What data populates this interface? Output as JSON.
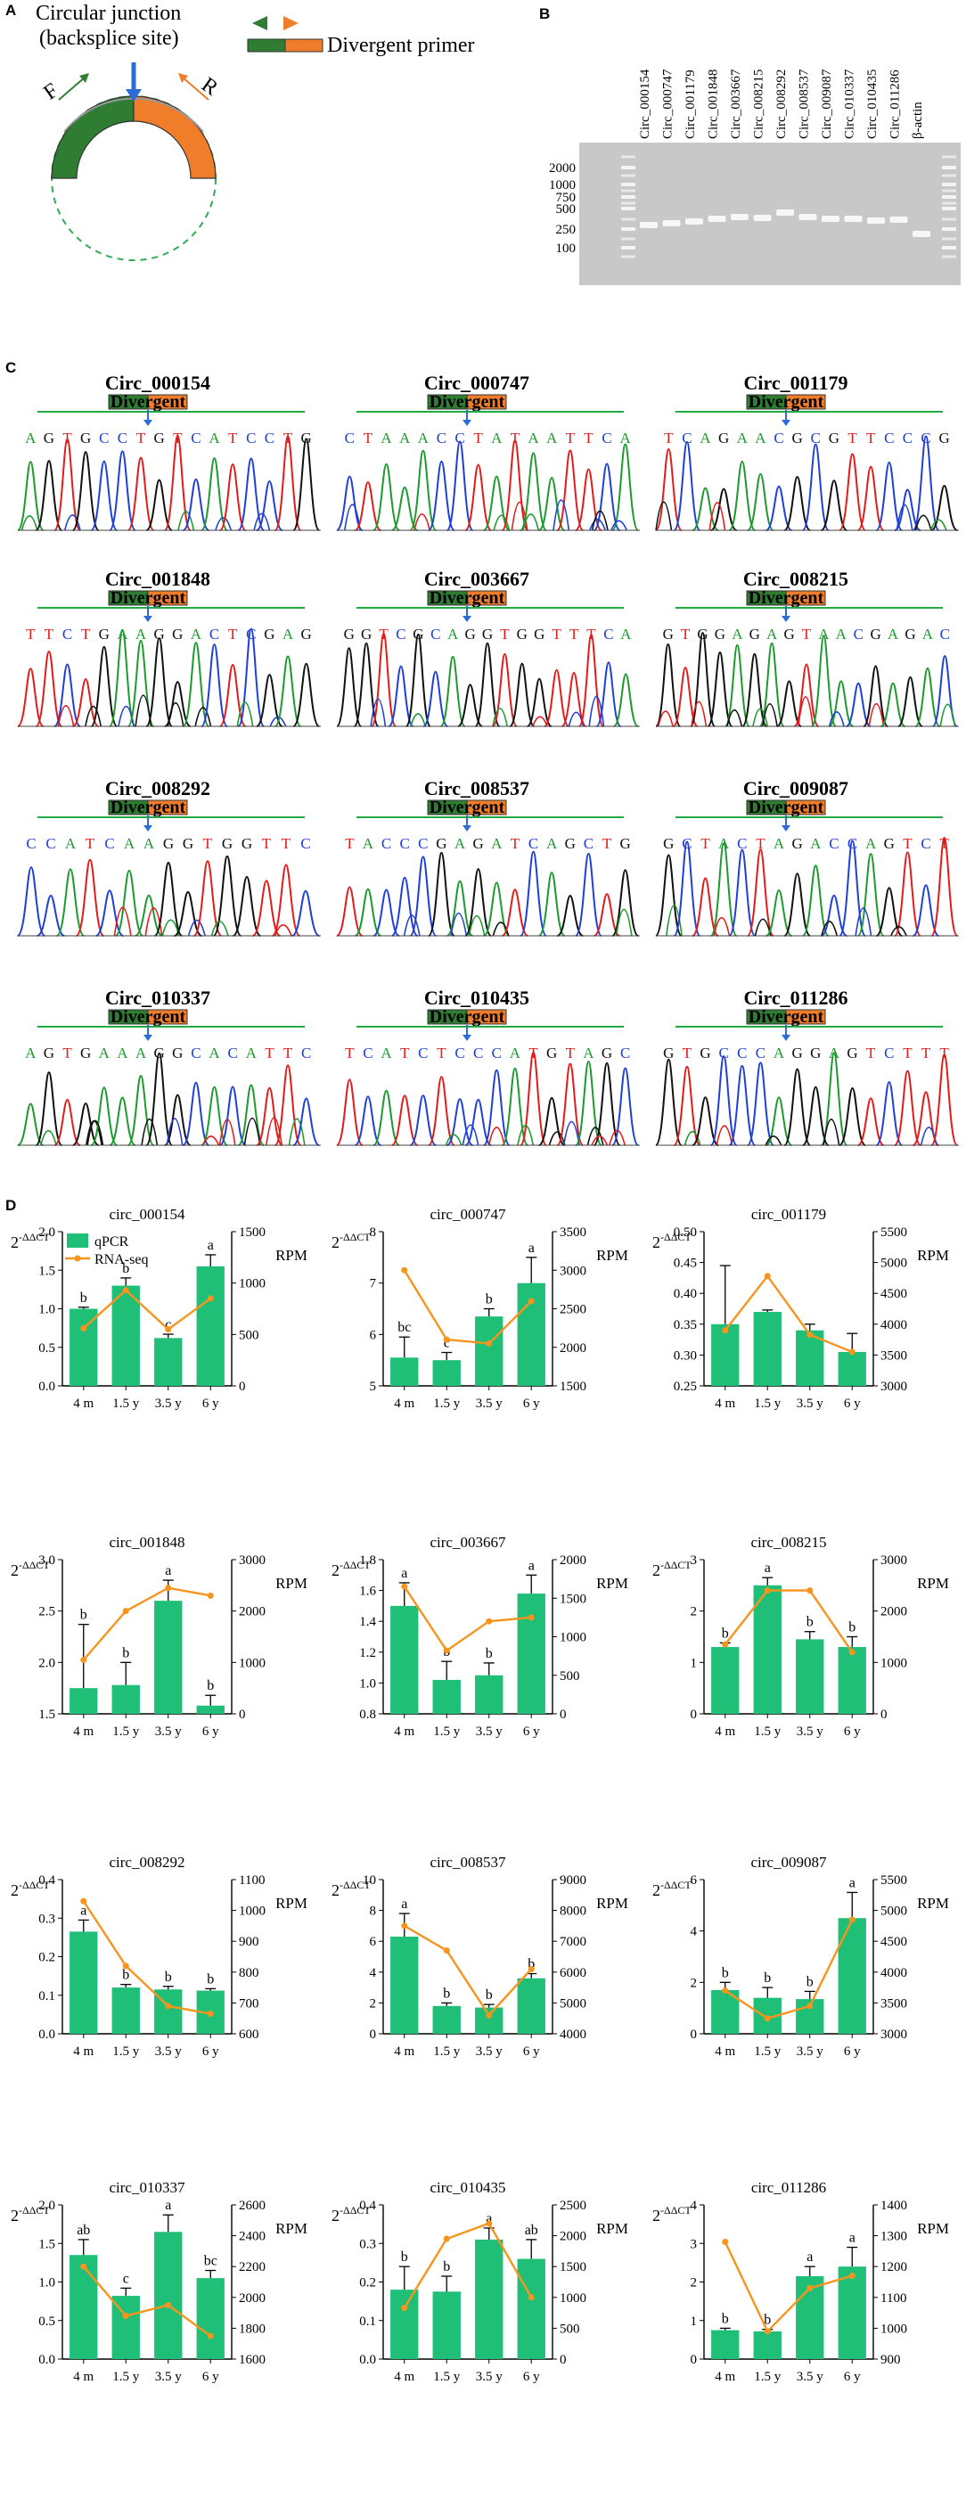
{
  "colors": {
    "qpcr": "#1fbf78",
    "rnaseq": "#f7941d",
    "primer_green": "#2e7d32",
    "primer_orange": "#f07d2a",
    "blue": "#2b6cd6"
  },
  "panelA": {
    "letter": "A",
    "title_line1": "Circular junction",
    "title_line2": "(backsplice site)",
    "legend_label": "Divergent primer",
    "label_F": "F",
    "label_R": "R"
  },
  "panelB": {
    "letter": "B",
    "lane_labels": [
      "Circ_000154",
      "Circ_000747",
      "Circ_001179",
      "Circ_001848",
      "Circ_003667",
      "Circ_008215",
      "Circ_008292",
      "Circ_008537",
      "Circ_009087",
      "Circ_010337",
      "Circ_010435",
      "Circ_011286",
      "β-actin"
    ],
    "ladder": [
      "2000",
      "1000",
      "750",
      "500",
      "250",
      "100"
    ]
  },
  "panelC": {
    "letter": "C",
    "primer_word": "Divergent",
    "traces": [
      {
        "name": "Circ_000154",
        "seq": "AGTGCCTGTCATCCTG"
      },
      {
        "name": "Circ_000747",
        "seq": "CTAAACCTATAATTCA"
      },
      {
        "name": "Circ_001179",
        "seq": "TCAGAACGCGTTCCCG"
      },
      {
        "name": "Circ_001848",
        "seq": "TTCTGAAGGACTCGAG"
      },
      {
        "name": "Circ_003667",
        "seq": "GGTCGCAGGTGGTTTCA"
      },
      {
        "name": "Circ_008215",
        "seq": "GTGGAGAGTAACGAGAC"
      },
      {
        "name": "Circ_008292",
        "seq": "CCATCAAGGTGGTTC"
      },
      {
        "name": "Circ_008537",
        "seq": "TACCCGAGATCAGCTG"
      },
      {
        "name": "Circ_009087",
        "seq": "GCTACTAGACCAGTCT"
      },
      {
        "name": "Circ_010337",
        "seq": "AGTGAAAGGCACATTC"
      },
      {
        "name": "Circ_010435",
        "seq": "TCATCTCCCATGTAGC"
      },
      {
        "name": "Circ_011286",
        "seq": "GTGCCCAGGAGTCTTT"
      }
    ]
  },
  "panelD": {
    "letter": "D",
    "left_axis_label": "2",
    "left_axis_sup": "-ΔΔCT",
    "right_axis_label": "RPM",
    "legend_qpcr": "qPCR",
    "legend_rna": "RNA-seq",
    "categories": [
      "4 m",
      "1.5 y",
      "3.5 y",
      "6 y"
    ]
  },
  "chart_data": [
    {
      "type": "bar+line",
      "title": "circ_000154",
      "categories": [
        "4 m",
        "1.5 y",
        "3.5 y",
        "6 y"
      ],
      "left_ylim": [
        0,
        2.0
      ],
      "left_ticks": [
        "0.0",
        "0.5",
        "1.0",
        "1.5",
        "2.0"
      ],
      "right_ylim": [
        0,
        1500
      ],
      "right_ticks": [
        "0",
        "500",
        "1000",
        "1500"
      ],
      "series": [
        {
          "name": "qPCR",
          "values": [
            1.0,
            1.3,
            0.62,
            1.55
          ],
          "errors": [
            0.02,
            0.1,
            0.05,
            0.15
          ]
        },
        {
          "name": "RNA-seq",
          "values": [
            560,
            930,
            550,
            850
          ]
        }
      ],
      "letters": [
        "b",
        "b",
        "c",
        "a"
      ]
    },
    {
      "type": "bar+line",
      "title": "circ_000747",
      "categories": [
        "4 m",
        "1.5 y",
        "3.5 y",
        "6 y"
      ],
      "left_ylim": [
        5,
        8
      ],
      "left_ticks": [
        "5",
        "6",
        "7",
        "8"
      ],
      "right_ylim": [
        1500,
        3500
      ],
      "right_ticks": [
        "1500",
        "2000",
        "2500",
        "3000",
        "3500"
      ],
      "series": [
        {
          "name": "qPCR",
          "values": [
            5.55,
            5.5,
            6.35,
            7.0
          ],
          "errors": [
            0.4,
            0.15,
            0.15,
            0.5
          ]
        },
        {
          "name": "RNA-seq",
          "values": [
            3000,
            2100,
            2050,
            2600
          ]
        }
      ],
      "letters": [
        "bc",
        "c",
        "b",
        "a"
      ]
    },
    {
      "type": "bar+line",
      "title": "circ_001179",
      "categories": [
        "4 m",
        "1.5 y",
        "3.5 y",
        "6 y"
      ],
      "left_ylim": [
        0.25,
        0.5
      ],
      "left_ticks": [
        "0.25",
        "0.30",
        "0.35",
        "0.40",
        "0.45",
        "0.50"
      ],
      "right_ylim": [
        3000,
        5500
      ],
      "right_ticks": [
        "3000",
        "3500",
        "4000",
        "4500",
        "5000",
        "5500"
      ],
      "series": [
        {
          "name": "qPCR",
          "values": [
            0.35,
            0.37,
            0.34,
            0.305
          ],
          "errors": [
            0.095,
            0.003,
            0.01,
            0.03
          ]
        },
        {
          "name": "RNA-seq",
          "values": [
            3900,
            4780,
            3830,
            3550
          ]
        }
      ],
      "letters": [
        "",
        "",
        "",
        ""
      ]
    },
    {
      "type": "bar+line",
      "title": "circ_001848",
      "categories": [
        "4 m",
        "1.5 y",
        "3.5 y",
        "6 y"
      ],
      "left_ylim": [
        1.5,
        3.0
      ],
      "left_ticks": [
        "1.5",
        "2.0",
        "2.5",
        "3.0"
      ],
      "right_ylim": [
        0,
        3000
      ],
      "right_ticks": [
        "0",
        "1000",
        "2000",
        "3000"
      ],
      "series": [
        {
          "name": "qPCR",
          "values": [
            1.75,
            1.78,
            2.6,
            1.58
          ],
          "errors": [
            0.62,
            0.22,
            0.2,
            0.1
          ]
        },
        {
          "name": "RNA-seq",
          "values": [
            1050,
            2000,
            2450,
            2300
          ]
        }
      ],
      "letters": [
        "b",
        "b",
        "a",
        "b"
      ]
    },
    {
      "type": "bar+line",
      "title": "circ_003667",
      "categories": [
        "4 m",
        "1.5 y",
        "3.5 y",
        "6 y"
      ],
      "left_ylim": [
        0.8,
        1.8
      ],
      "left_ticks": [
        "0.8",
        "1.0",
        "1.2",
        "1.4",
        "1.6",
        "1.8"
      ],
      "right_ylim": [
        0,
        2000
      ],
      "right_ticks": [
        "0",
        "500",
        "1000",
        "1500",
        "2000"
      ],
      "series": [
        {
          "name": "qPCR",
          "values": [
            1.5,
            1.02,
            1.05,
            1.58
          ],
          "errors": [
            0.15,
            0.12,
            0.08,
            0.12
          ]
        },
        {
          "name": "RNA-seq",
          "values": [
            1650,
            820,
            1200,
            1250
          ]
        }
      ],
      "letters": [
        "a",
        "b",
        "b",
        "a"
      ]
    },
    {
      "type": "bar+line",
      "title": "circ_008215",
      "categories": [
        "4 m",
        "1.5 y",
        "3.5 y",
        "6 y"
      ],
      "left_ylim": [
        0,
        3
      ],
      "left_ticks": [
        "0",
        "1",
        "2",
        "3"
      ],
      "right_ylim": [
        0,
        3000
      ],
      "right_ticks": [
        "0",
        "1000",
        "2000",
        "3000"
      ],
      "series": [
        {
          "name": "qPCR",
          "values": [
            1.3,
            2.5,
            1.45,
            1.3
          ],
          "errors": [
            0.08,
            0.15,
            0.15,
            0.2
          ]
        },
        {
          "name": "RNA-seq",
          "values": [
            1350,
            2400,
            2400,
            1200
          ]
        }
      ],
      "letters": [
        "b",
        "a",
        "b",
        "b"
      ]
    },
    {
      "type": "bar+line",
      "title": "circ_008292",
      "categories": [
        "4 m",
        "1.5 y",
        "3.5 y",
        "6 y"
      ],
      "left_ylim": [
        0,
        0.4
      ],
      "left_ticks": [
        "0.0",
        "0.1",
        "0.2",
        "0.3",
        "0.4"
      ],
      "right_ylim": [
        600,
        1100
      ],
      "right_ticks": [
        "600",
        "700",
        "800",
        "900",
        "1000",
        "1100"
      ],
      "series": [
        {
          "name": "qPCR",
          "values": [
            0.265,
            0.12,
            0.115,
            0.112
          ],
          "errors": [
            0.03,
            0.008,
            0.008,
            0.005
          ]
        },
        {
          "name": "RNA-seq",
          "values": [
            1030,
            820,
            690,
            665
          ]
        }
      ],
      "letters": [
        "a",
        "b",
        "b",
        "b"
      ]
    },
    {
      "type": "bar+line",
      "title": "circ_008537",
      "categories": [
        "4 m",
        "1.5 y",
        "3.5 y",
        "6 y"
      ],
      "left_ylim": [
        0,
        10
      ],
      "left_ticks": [
        "0",
        "2",
        "4",
        "6",
        "8",
        "10"
      ],
      "right_ylim": [
        4000,
        9000
      ],
      "right_ticks": [
        "4000",
        "5000",
        "6000",
        "7000",
        "8000",
        "9000"
      ],
      "series": [
        {
          "name": "qPCR",
          "values": [
            6.3,
            1.8,
            1.7,
            3.6
          ],
          "errors": [
            1.5,
            0.2,
            0.2,
            0.3
          ]
        },
        {
          "name": "RNA-seq",
          "values": [
            7500,
            6700,
            4600,
            6100
          ]
        }
      ],
      "letters": [
        "a",
        "b",
        "b",
        "b"
      ]
    },
    {
      "type": "bar+line",
      "title": "circ_009087",
      "categories": [
        "4 m",
        "1.5 y",
        "3.5 y",
        "6 y"
      ],
      "left_ylim": [
        0,
        6
      ],
      "left_ticks": [
        "0",
        "2",
        "4",
        "6"
      ],
      "right_ylim": [
        3000,
        5500
      ],
      "right_ticks": [
        "3000",
        "3500",
        "4000",
        "4500",
        "5000",
        "5500"
      ],
      "series": [
        {
          "name": "qPCR",
          "values": [
            1.7,
            1.4,
            1.35,
            4.5
          ],
          "errors": [
            0.3,
            0.4,
            0.3,
            1.0
          ]
        },
        {
          "name": "RNA-seq",
          "values": [
            3700,
            3250,
            3450,
            4850
          ]
        }
      ],
      "letters": [
        "b",
        "b",
        "b",
        "a"
      ]
    },
    {
      "type": "bar+line",
      "title": "circ_010337",
      "categories": [
        "4 m",
        "1.5 y",
        "3.5 y",
        "6 y"
      ],
      "left_ylim": [
        0,
        2.0
      ],
      "left_ticks": [
        "0.0",
        "0.5",
        "1.0",
        "1.5",
        "2.0"
      ],
      "right_ylim": [
        1600,
        2600
      ],
      "right_ticks": [
        "1600",
        "1800",
        "2000",
        "2200",
        "2400",
        "2600"
      ],
      "series": [
        {
          "name": "qPCR",
          "values": [
            1.35,
            0.82,
            1.65,
            1.05
          ],
          "errors": [
            0.2,
            0.1,
            0.22,
            0.1
          ]
        },
        {
          "name": "RNA-seq",
          "values": [
            2200,
            1880,
            1950,
            1750
          ]
        }
      ],
      "letters": [
        "ab",
        "c",
        "a",
        "bc"
      ]
    },
    {
      "type": "bar+line",
      "title": "circ_010435",
      "categories": [
        "4 m",
        "1.5 y",
        "3.5 y",
        "6 y"
      ],
      "left_ylim": [
        0,
        0.4
      ],
      "left_ticks": [
        "0.0",
        "0.1",
        "0.2",
        "0.3",
        "0.4"
      ],
      "right_ylim": [
        0,
        2500
      ],
      "right_ticks": [
        "0",
        "500",
        "1000",
        "1500",
        "2000",
        "2500"
      ],
      "series": [
        {
          "name": "qPCR",
          "values": [
            0.18,
            0.175,
            0.31,
            0.26
          ],
          "errors": [
            0.06,
            0.04,
            0.03,
            0.05
          ]
        },
        {
          "name": "RNA-seq",
          "values": [
            830,
            1950,
            2200,
            1000
          ]
        }
      ],
      "letters": [
        "b",
        "b",
        "a",
        "ab"
      ]
    },
    {
      "type": "bar+line",
      "title": "circ_011286",
      "categories": [
        "4 m",
        "1.5 y",
        "3.5 y",
        "6 y"
      ],
      "left_ylim": [
        0,
        4
      ],
      "left_ticks": [
        "0",
        "1",
        "2",
        "3",
        "4"
      ],
      "right_ylim": [
        900,
        1400
      ],
      "right_ticks": [
        "900",
        "1000",
        "1100",
        "1200",
        "1300",
        "1400"
      ],
      "series": [
        {
          "name": "qPCR",
          "values": [
            0.75,
            0.72,
            2.15,
            2.4
          ],
          "errors": [
            0.05,
            0.05,
            0.25,
            0.5
          ]
        },
        {
          "name": "RNA-seq",
          "values": [
            1280,
            990,
            1130,
            1170
          ]
        }
      ],
      "letters": [
        "b",
        "b",
        "a",
        "a"
      ]
    }
  ]
}
